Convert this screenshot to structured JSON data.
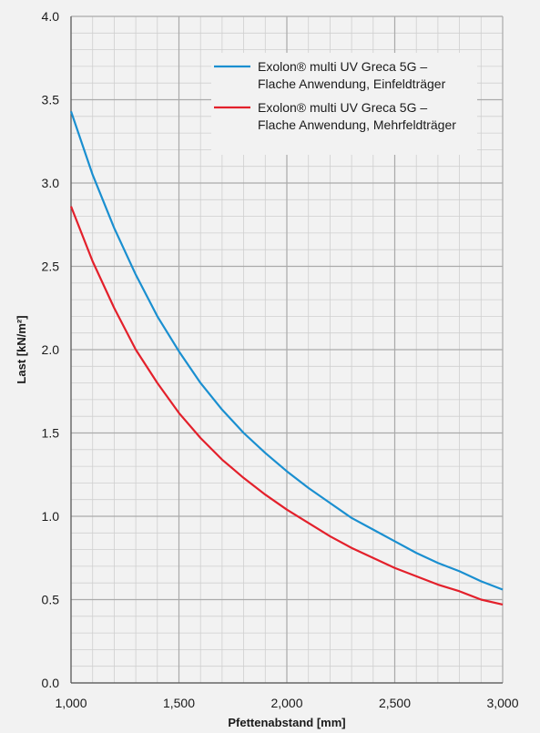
{
  "chart_data": {
    "type": "line",
    "title": "",
    "xlabel": "Pfettenabstand [mm]",
    "ylabel": "Last [kN/m²]",
    "xlim": [
      1000,
      3000
    ],
    "ylim": [
      0,
      4
    ],
    "x_ticks": [
      1000,
      1500,
      2000,
      2500,
      3000
    ],
    "x_tick_labels": [
      "1,000",
      "1,500",
      "2,000",
      "2,500",
      "3,000"
    ],
    "y_ticks": [
      0,
      0.5,
      1,
      1.5,
      2,
      2.5,
      3,
      3.5,
      4
    ],
    "y_tick_labels": [
      "0.0",
      "0.5",
      "1.0",
      "1.5",
      "2.0",
      "2.5",
      "3.0",
      "3.5",
      "4.0"
    ],
    "grid": true,
    "legend_position": "top-right",
    "background_color": "#f2f2f2",
    "grid_major_color": "#aaaaaa",
    "grid_minor_color": "#cfcfcf",
    "series": [
      {
        "name_lines": [
          "Exolon® multi UV Greca 5G –",
          "Flache Anwendung, Einfeldträger"
        ],
        "color": "#1a8fd0",
        "x": [
          1000,
          1100,
          1200,
          1300,
          1400,
          1500,
          1600,
          1700,
          1800,
          1900,
          2000,
          2100,
          2200,
          2300,
          2400,
          2500,
          2600,
          2700,
          2800,
          2900,
          3000
        ],
        "y": [
          3.43,
          3.05,
          2.73,
          2.45,
          2.2,
          1.99,
          1.8,
          1.64,
          1.5,
          1.38,
          1.27,
          1.17,
          1.08,
          0.99,
          0.92,
          0.85,
          0.78,
          0.72,
          0.67,
          0.61,
          0.56
        ]
      },
      {
        "name_lines": [
          "Exolon® multi UV Greca 5G –",
          "Flache Anwendung, Mehrfeldträger"
        ],
        "color": "#e3202b",
        "x": [
          1000,
          1100,
          1200,
          1300,
          1400,
          1500,
          1600,
          1700,
          1800,
          1900,
          2000,
          2100,
          2200,
          2300,
          2400,
          2500,
          2600,
          2700,
          2800,
          2900,
          3000
        ],
        "y": [
          2.86,
          2.53,
          2.25,
          2.0,
          1.8,
          1.62,
          1.47,
          1.34,
          1.23,
          1.13,
          1.04,
          0.96,
          0.88,
          0.81,
          0.75,
          0.69,
          0.64,
          0.59,
          0.55,
          0.5,
          0.47
        ]
      }
    ]
  }
}
